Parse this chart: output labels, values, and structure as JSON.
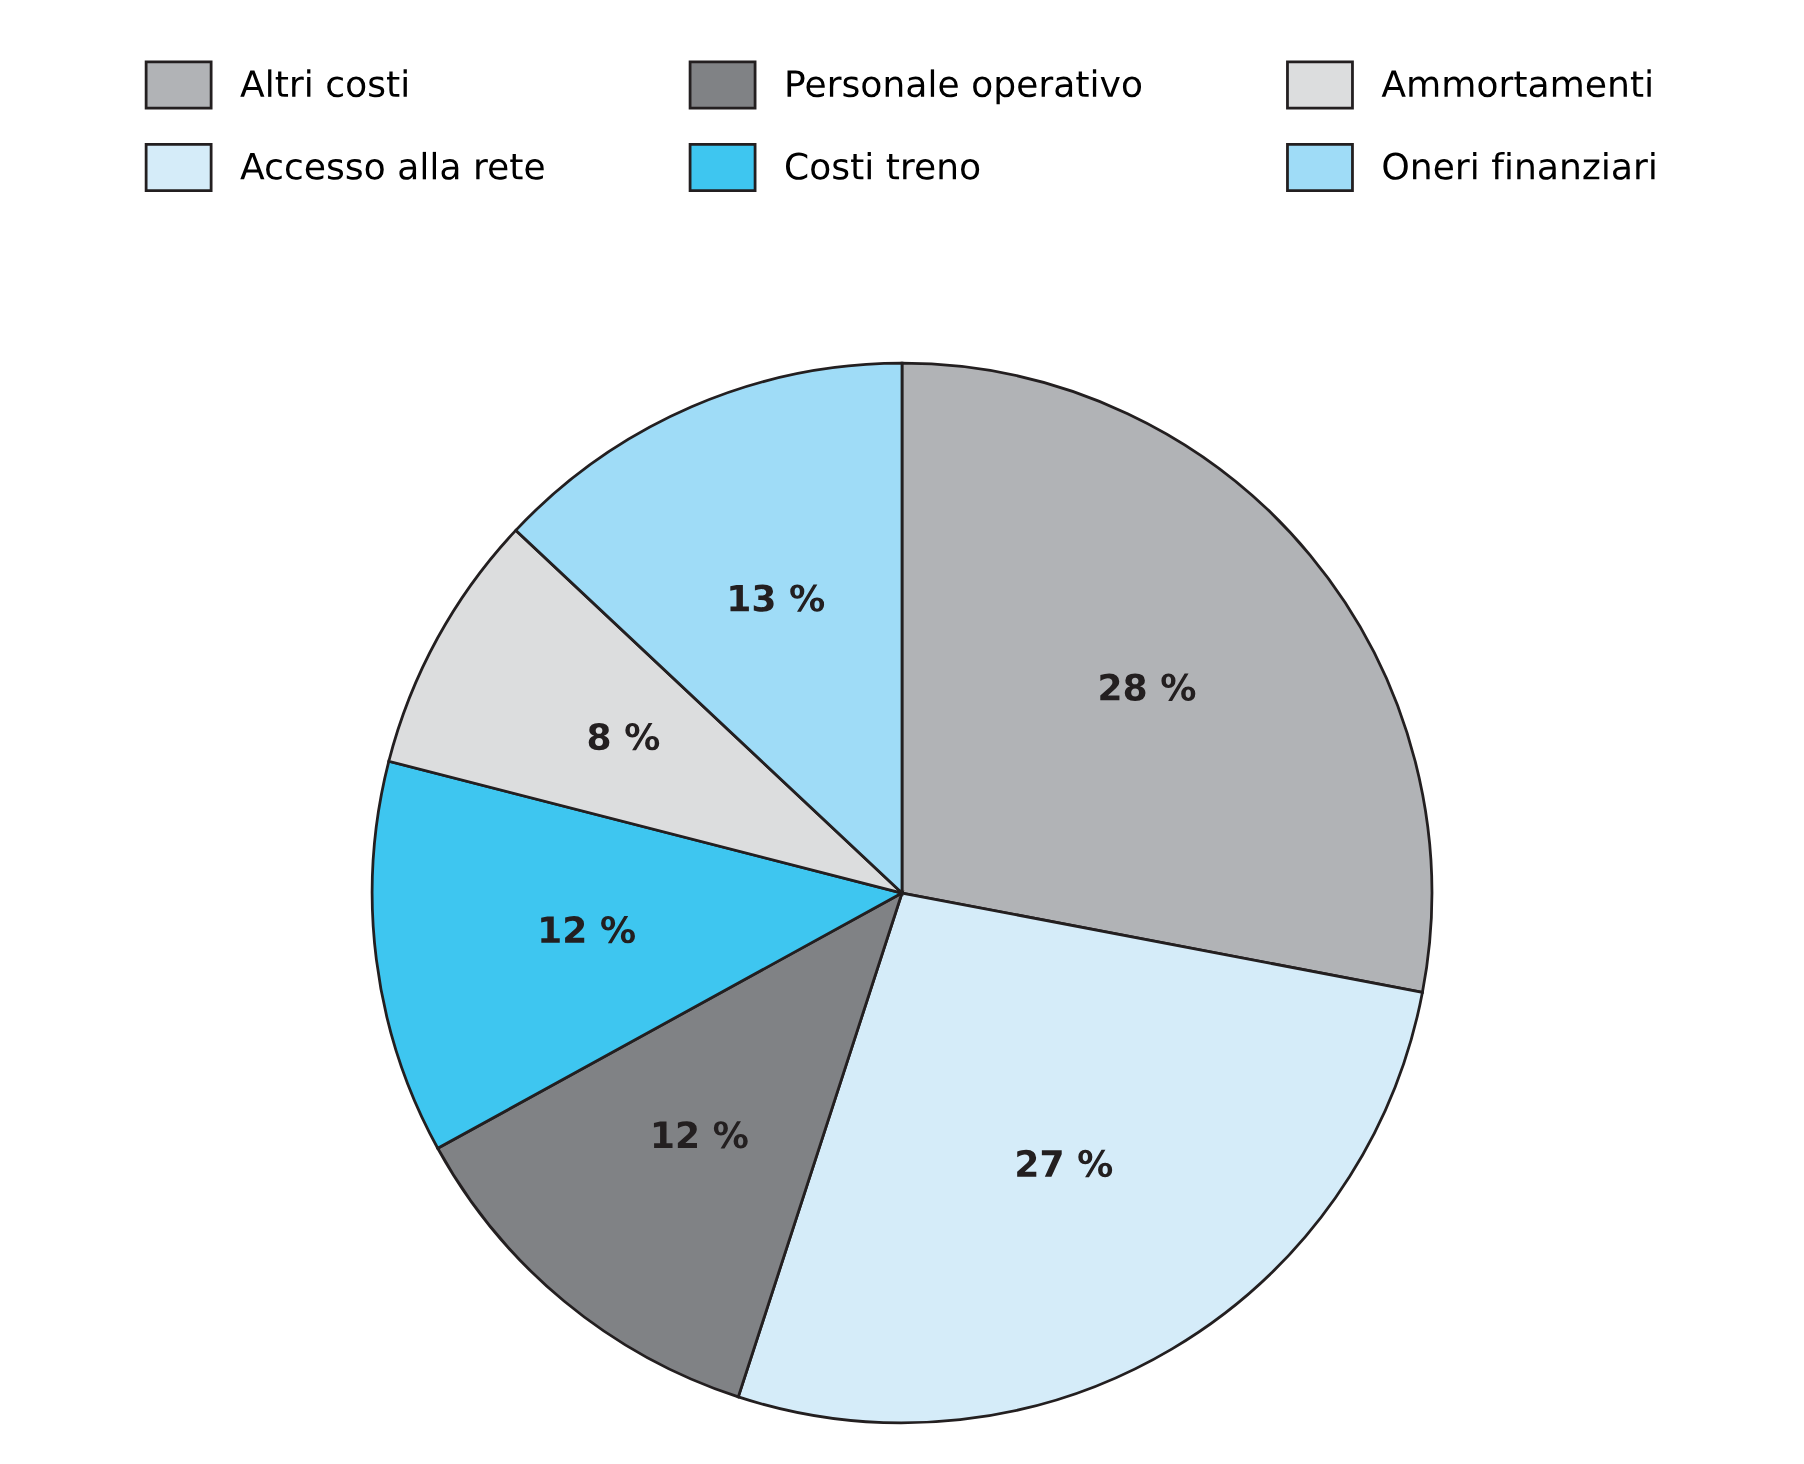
{
  "chart_data": {
    "type": "pie",
    "categories": [
      "Altri costi",
      "Accesso alla rete",
      "Personale operativo",
      "Costi treno",
      "Ammortamenti",
      "Oneri finanziari"
    ],
    "values": [
      28,
      27,
      12,
      12,
      8,
      13
    ],
    "value_labels": [
      "28 %",
      "27 %",
      "12 %",
      "12 %",
      "8 %",
      "13 %"
    ],
    "colors": [
      "#b1b3b6",
      "#d5ecf9",
      "#808285",
      "#3ec6f0",
      "#dcddde",
      "#9fdcf7"
    ],
    "legend": "top"
  }
}
